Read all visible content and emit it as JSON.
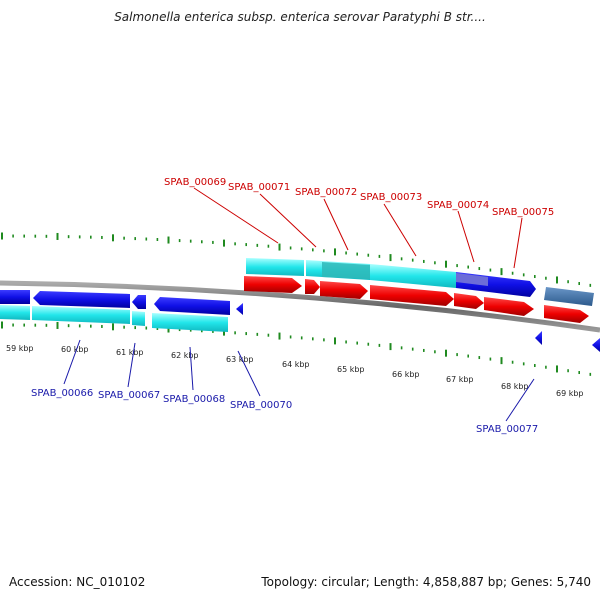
{
  "title": "Salmonella enterica subsp. enterica serovar Paratyphi B str....",
  "footer": {
    "accession": "Accession: NC_010102",
    "topology": "Topology: circular; Length: 4,858,887 bp; Genes: 5,740"
  },
  "colors": {
    "upper_gene_label": "#cc0000",
    "lower_gene_label": "#1a1aaa",
    "tick": "#1f8a1f",
    "backbone": "#777777"
  },
  "kbp_labels": [
    "59 kbp",
    "60 kbp",
    "61 kbp",
    "62 kbp",
    "63 kbp",
    "64 kbp",
    "65 kbp",
    "66 kbp",
    "67 kbp",
    "68 kbp",
    "69 kbp"
  ],
  "upper_genes": [
    "SPAB_00069",
    "SPAB_00071",
    "SPAB_00072",
    "SPAB_00073",
    "SPAB_00074",
    "SPAB_00075"
  ],
  "lower_genes": [
    "SPAB_00066",
    "SPAB_00067",
    "SPAB_00068",
    "SPAB_00070",
    "SPAB_00077"
  ]
}
